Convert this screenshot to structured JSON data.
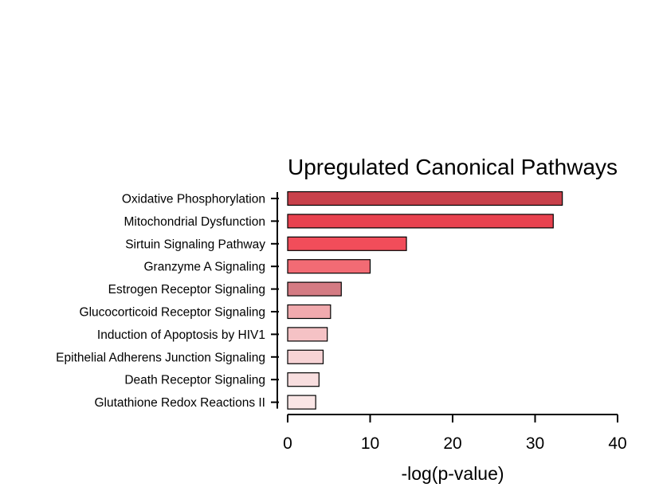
{
  "chart_data": {
    "type": "bar",
    "orientation": "horizontal",
    "title": "Upregulated Canonical Pathways",
    "xlabel": "-log(p-value)",
    "ylabel": "",
    "xlim": [
      0,
      40
    ],
    "xticks": [
      0,
      10,
      20,
      30,
      40
    ],
    "grid": false,
    "categories": [
      "Oxidative Phosphorylation",
      "Mitochondrial Dysfunction",
      "Sirtuin Signaling Pathway",
      "Granzyme A Signaling",
      "Estrogen Receptor Signaling",
      "Glucocorticoid Receptor Signaling",
      "Induction of Apoptosis by HIV1",
      "Epithelial Adherens Junction Signaling",
      "Death Receptor Signaling",
      "Glutathione Redox Reactions II"
    ],
    "values": [
      33.3,
      32.2,
      14.4,
      10.0,
      6.5,
      5.2,
      4.8,
      4.3,
      3.8,
      3.4
    ],
    "colors": [
      "#c8414b",
      "#e8424f",
      "#f14d5a",
      "#f26b74",
      "#d47b83",
      "#f1aaae",
      "#f5c2c5",
      "#f7d3d5",
      "#f8dedf",
      "#fae6e6"
    ]
  }
}
